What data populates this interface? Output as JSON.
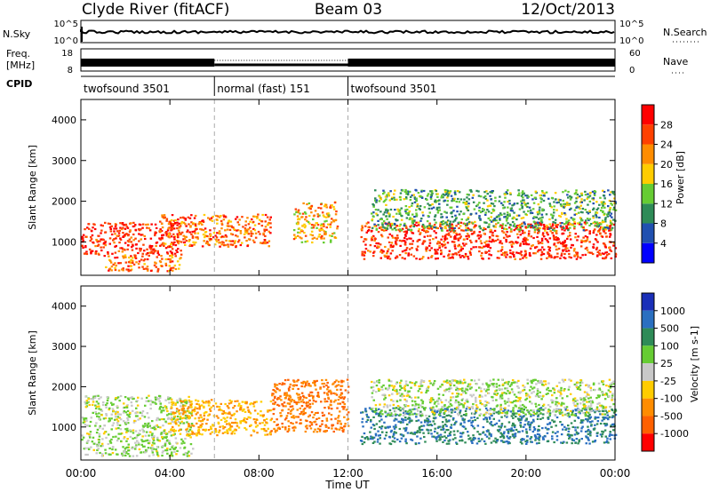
{
  "header": {
    "station": "Clyde River (fitACF)",
    "beam": "Beam 03",
    "date": "12/Oct/2013"
  },
  "scan_panel": {
    "left_label": "N.Sky",
    "left_ticks": [
      "10^5",
      "10^0"
    ],
    "right_label": "N.Search",
    "right_ticks": [
      "10^5",
      "10^0"
    ]
  },
  "freq_panel": {
    "left_label_1": "Freq.",
    "left_label_2": "[MHz]",
    "left_ticks": [
      "18",
      "8"
    ],
    "right_label": "Nave",
    "right_ticks": [
      "60",
      "0"
    ]
  },
  "cpid_panel": {
    "label": "CPID",
    "segments": [
      {
        "name": "twofsound 3501",
        "start_h": 0,
        "end_h": 6
      },
      {
        "name": "normal (fast) 151",
        "start_h": 6,
        "end_h": 12
      },
      {
        "name": "twofsound 3501",
        "start_h": 12,
        "end_h": 24
      }
    ]
  },
  "power_panel": {
    "ylabel": "Slant Range [km]",
    "yticks": [
      "1000",
      "2000",
      "3000",
      "4000"
    ],
    "colorbar_label": "Power [dB]",
    "colorbar_ticks": [
      "4",
      "8",
      "12",
      "16",
      "20",
      "24",
      "28"
    ],
    "colors": [
      "#0000ff",
      "#2050b0",
      "#2e8b57",
      "#66cc33",
      "#ffcc00",
      "#ff8c00",
      "#ff4000",
      "#ff0000"
    ]
  },
  "velocity_panel": {
    "ylabel": "Slant Range [km]",
    "yticks": [
      "1000",
      "2000",
      "3000",
      "4000"
    ],
    "colorbar_label": "Velocity [m s-1]",
    "colorbar_ticks": [
      "1000",
      "500",
      "100",
      "25",
      "-25",
      "-100",
      "-500",
      "-1000"
    ],
    "colors": [
      "#1a2fb8",
      "#2a6fc0",
      "#2e8b57",
      "#66cc33",
      "#c8c8c8",
      "#ffcc00",
      "#ff8c00",
      "#ff6000",
      "#ff0000"
    ]
  },
  "xaxis": {
    "label": "Time UT",
    "ticks": [
      "00:00",
      "04:00",
      "08:00",
      "12:00",
      "16:00",
      "20:00",
      "00:00"
    ]
  },
  "chart_data": {
    "type": "heatmap",
    "x_range_hours": [
      0,
      24
    ],
    "y_range_km": [
      180,
      4500
    ],
    "power_echo_regions": [
      {
        "t0": 0.0,
        "t1": 4.5,
        "r0": 700,
        "r1": 1500,
        "power_db": 28
      },
      {
        "t0": 1.0,
        "t1": 4.5,
        "r0": 300,
        "r1": 700,
        "power_db": 24
      },
      {
        "t0": 3.5,
        "t1": 8.5,
        "r0": 900,
        "r1": 1700,
        "power_db": 24
      },
      {
        "t0": 9.5,
        "t1": 11.5,
        "r0": 1000,
        "r1": 2000,
        "power_db": 20
      },
      {
        "t0": 12.5,
        "t1": 24.0,
        "r0": 600,
        "r1": 1500,
        "power_db": 28
      },
      {
        "t0": 13.0,
        "t1": 24.0,
        "r0": 1300,
        "r1": 2300,
        "power_db": 12
      }
    ],
    "velocity_echo_regions": [
      {
        "t0": 0.0,
        "t1": 5.0,
        "r0": 300,
        "r1": 1800,
        "velocity": 25
      },
      {
        "t0": 4.0,
        "t1": 8.5,
        "r0": 800,
        "r1": 1700,
        "velocity": -100
      },
      {
        "t0": 8.5,
        "t1": 12.0,
        "r0": 900,
        "r1": 2200,
        "velocity": -500
      },
      {
        "t0": 12.5,
        "t1": 24.0,
        "r0": 600,
        "r1": 1500,
        "velocity": 500
      },
      {
        "t0": 13.0,
        "t1": 24.0,
        "r0": 1300,
        "r1": 2200,
        "velocity": 25
      }
    ]
  }
}
